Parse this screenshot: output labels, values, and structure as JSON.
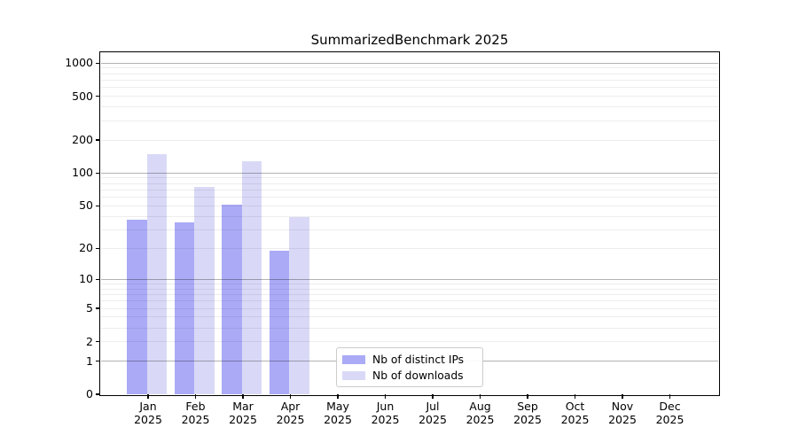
{
  "chart_data": {
    "type": "bar",
    "title": "SummarizedBenchmark 2025",
    "categories": [
      "Jan",
      "Feb",
      "Mar",
      "Apr",
      "May",
      "Jun",
      "Jul",
      "Aug",
      "Sep",
      "Oct",
      "Nov",
      "Dec"
    ],
    "year_label": "2025",
    "series": [
      {
        "name": "Nb of distinct IPs",
        "color": "#aaaaf7",
        "values": [
          37,
          35,
          51,
          19,
          0,
          0,
          0,
          0,
          0,
          0,
          0,
          0
        ]
      },
      {
        "name": "Nb of downloads",
        "color": "#d9d9f7",
        "values": [
          150,
          74,
          128,
          39,
          0,
          0,
          0,
          0,
          0,
          0,
          0,
          0
        ]
      }
    ],
    "yscale": "log1p",
    "ylim": [
      0,
      1250
    ],
    "y_ticks": [
      0,
      1,
      2,
      5,
      10,
      20,
      50,
      100,
      200,
      500,
      1000
    ],
    "y_major_gridlines": [
      1,
      10,
      100,
      1000
    ],
    "y_minor_gridlines": [
      3,
      4,
      6,
      7,
      8,
      9,
      30,
      40,
      60,
      70,
      80,
      90,
      300,
      400,
      600,
      700,
      800,
      900
    ],
    "grid": "horizontal",
    "grid_above_bars": true,
    "legend_position": "lower center inside",
    "xlabel": "",
    "ylabel": ""
  },
  "colors": {
    "background": "#ffffff",
    "frame": "#000000",
    "grid_major": "rgba(0,0,0,0.30)",
    "grid_minor": "rgba(0,0,0,0.07)",
    "bar_distinct_ips": "#aaaaf7",
    "bar_downloads": "#d9d9f7"
  }
}
